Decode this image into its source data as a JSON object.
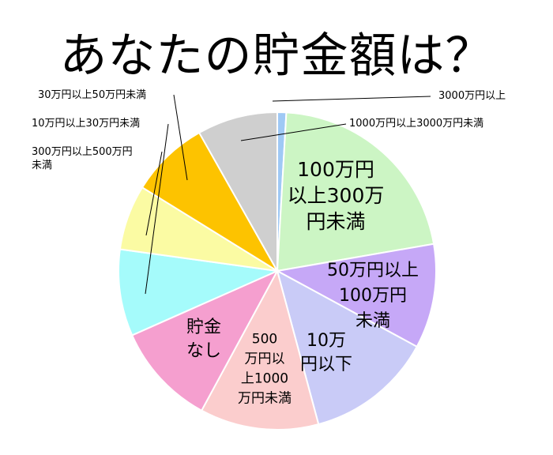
{
  "chart_data": {
    "type": "pie",
    "title": "あなたの貯金額は？",
    "start_angle_deg": 0,
    "direction": "clockwise",
    "slices": [
      {
        "name": "3000万円以上",
        "value": 1.0,
        "color": "#9fc9f5",
        "label_lines": []
      },
      {
        "name": "100万円以上300万円未満",
        "value": 23.5,
        "color": "#ccf5c4",
        "label_lines": [
          "100万円",
          "以上300万",
          "円未満"
        ]
      },
      {
        "name": "50万円以上100万円未満",
        "value": 11.7,
        "color": "#c6a8f7",
        "label_lines": [
          "50万円以上",
          "100万円",
          "未満"
        ]
      },
      {
        "name": "10万円以下",
        "value": 14.2,
        "color": "#c9cbf7",
        "label_lines": [
          "10万",
          "円以下"
        ]
      },
      {
        "name": "500万円以上1000万円未満",
        "value": 13.3,
        "color": "#fbcdcd",
        "label_lines": [
          "500",
          "万円以",
          "上1000",
          "万円未満"
        ]
      },
      {
        "name": "貯金なし",
        "value": 11.5,
        "color": "#f59fcf",
        "label_lines": [
          "貯金",
          "なし"
        ]
      },
      {
        "name": "300万円以上500万円未満",
        "value": 9.7,
        "color": "#a5fbfb",
        "label_lines": []
      },
      {
        "name": "10万円以上30万円未満",
        "value": 7.3,
        "color": "#fbfba3",
        "label_lines": []
      },
      {
        "name": "30万円以上50万円未満",
        "value": 8.8,
        "color": "#fdc300",
        "label_lines": []
      },
      {
        "name": "1000万円以上3000万円未満",
        "value": 9.0,
        "color": "#cfcfcf",
        "label_lines": []
      }
    ]
  },
  "callouts": {
    "c3000": "3000万円以上",
    "c1000_3000": "1000万円以上3000万円未満",
    "c30_50": "30万円以上50万円未満",
    "c10_30": "10万円以上30万円未満",
    "c300_500_l1": "300万円以上500万円",
    "c300_500_l2": "未満"
  }
}
